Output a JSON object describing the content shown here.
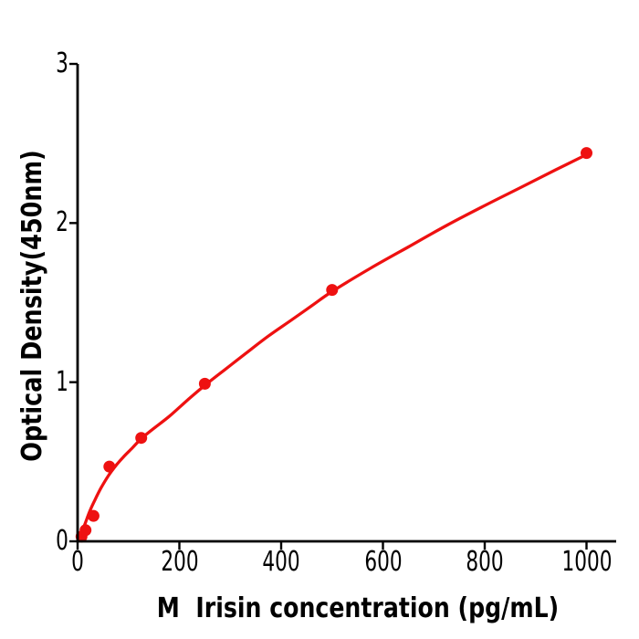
{
  "figure": {
    "background": "#ffffff"
  },
  "chart_data": {
    "type": "scatter",
    "title": "",
    "xlabel": "M  Irisin concentration (pg/mL)",
    "ylabel": "Optical Density(450nm)",
    "xlim": [
      0,
      1058
    ],
    "ylim": [
      0,
      3
    ],
    "x_ticks": [
      0,
      200,
      400,
      600,
      800,
      1000
    ],
    "y_ticks": [
      0,
      1,
      2,
      3
    ],
    "grid": false,
    "legend": null,
    "marker_color": "#ee1111",
    "curve_color": "#ee1111",
    "axis_color": "#000000",
    "points": [
      {
        "x": 7.8,
        "od": 0.03
      },
      {
        "x": 15.6,
        "od": 0.07
      },
      {
        "x": 31.25,
        "od": 0.16
      },
      {
        "x": 62.5,
        "od": 0.47
      },
      {
        "x": 125,
        "od": 0.65
      },
      {
        "x": 250,
        "od": 0.99
      },
      {
        "x": 500,
        "od": 1.58
      },
      {
        "x": 1000,
        "od": 2.44
      }
    ],
    "fit_curve": [
      [
        0,
        0
      ],
      [
        6,
        0.04
      ],
      [
        14,
        0.105
      ],
      [
        24,
        0.19
      ],
      [
        34,
        0.26
      ],
      [
        46,
        0.335
      ],
      [
        60,
        0.41
      ],
      [
        75,
        0.475
      ],
      [
        90,
        0.53
      ],
      [
        107,
        0.585
      ],
      [
        125,
        0.645
      ],
      [
        150,
        0.71
      ],
      [
        180,
        0.785
      ],
      [
        215,
        0.885
      ],
      [
        250,
        0.98
      ],
      [
        290,
        1.08
      ],
      [
        330,
        1.18
      ],
      [
        375,
        1.29
      ],
      [
        420,
        1.39
      ],
      [
        460,
        1.48
      ],
      [
        500,
        1.57
      ],
      [
        575,
        1.715
      ],
      [
        650,
        1.85
      ],
      [
        725,
        1.985
      ],
      [
        800,
        2.11
      ],
      [
        875,
        2.23
      ],
      [
        940,
        2.335
      ],
      [
        1000,
        2.43
      ]
    ]
  }
}
